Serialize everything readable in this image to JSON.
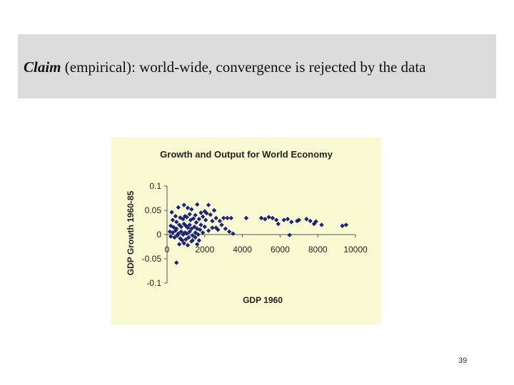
{
  "slide": {
    "claim_keyword": "Claim",
    "claim_rest": " (empirical): world-wide, convergence is rejected by the data",
    "page_number": "39"
  },
  "chart_data": {
    "type": "scatter",
    "title": "Growth and Output for World Economy",
    "xlabel": "GDP 1960",
    "ylabel": "GDP Growth 1960-85",
    "xlim": [
      0,
      10000
    ],
    "ylim": [
      -0.1,
      0.1
    ],
    "x_ticks": [
      "0",
      "2000",
      "4000",
      "6000",
      "8000",
      "10000"
    ],
    "y_ticks": [
      "0.1",
      "0.05",
      "0",
      "-0.05",
      "-0.1"
    ],
    "grid": false,
    "marker": "diamond",
    "point_color": "#1a237e",
    "points": [
      [
        250,
        0.046
      ],
      [
        450,
        0.038
      ],
      [
        600,
        0.056
      ],
      [
        900,
        0.061
      ],
      [
        1100,
        0.055
      ],
      [
        1300,
        0.052
      ],
      [
        1600,
        0.062
      ],
      [
        2200,
        0.061
      ],
      [
        1200,
        0.042
      ],
      [
        1500,
        0.04
      ],
      [
        1800,
        0.045
      ],
      [
        2000,
        0.048
      ],
      [
        2100,
        0.044
      ],
      [
        2300,
        0.041
      ],
      [
        2500,
        0.05
      ],
      [
        300,
        0.03
      ],
      [
        500,
        0.026
      ],
      [
        700,
        0.035
      ],
      [
        850,
        0.032
      ],
      [
        950,
        0.038
      ],
      [
        1050,
        0.036
      ],
      [
        1250,
        0.03
      ],
      [
        1400,
        0.033
      ],
      [
        1550,
        0.025
      ],
      [
        1700,
        0.032
      ],
      [
        1900,
        0.037
      ],
      [
        2050,
        0.03
      ],
      [
        2400,
        0.028
      ],
      [
        2600,
        0.034
      ],
      [
        2800,
        0.028
      ],
      [
        3000,
        0.034
      ],
      [
        3200,
        0.034
      ],
      [
        3400,
        0.034
      ],
      [
        2900,
        0.02
      ],
      [
        3100,
        0.012
      ],
      [
        3300,
        0.006
      ],
      [
        3500,
        0.002
      ],
      [
        200,
        0.018
      ],
      [
        350,
        0.015
      ],
      [
        500,
        0.012
      ],
      [
        650,
        0.02
      ],
      [
        750,
        0.016
      ],
      [
        900,
        0.022
      ],
      [
        1000,
        0.018
      ],
      [
        1100,
        0.014
      ],
      [
        1200,
        0.02
      ],
      [
        1300,
        0.012
      ],
      [
        1450,
        0.016
      ],
      [
        1600,
        0.012
      ],
      [
        1800,
        0.02
      ],
      [
        2000,
        0.016
      ],
      [
        2200,
        0.008
      ],
      [
        2400,
        0.014
      ],
      [
        1750,
        0.01
      ],
      [
        2600,
        0.014
      ],
      [
        2700,
        0.01
      ],
      [
        150,
        0.006
      ],
      [
        300,
        0.004
      ],
      [
        450,
        0.008
      ],
      [
        600,
        0.002
      ],
      [
        750,
        0.006
      ],
      [
        850,
        0.0
      ],
      [
        950,
        0.004
      ],
      [
        1050,
        0.002
      ],
      [
        1200,
        0.006
      ],
      [
        1350,
        -0.002
      ],
      [
        1500,
        0.004
      ],
      [
        1650,
        0.0
      ],
      [
        1900,
        0.004
      ],
      [
        200,
        -0.004
      ],
      [
        400,
        -0.006
      ],
      [
        550,
        -0.002
      ],
      [
        700,
        -0.008
      ],
      [
        800,
        -0.012
      ],
      [
        1000,
        -0.01
      ],
      [
        1150,
        -0.006
      ],
      [
        1300,
        -0.014
      ],
      [
        1500,
        -0.006
      ],
      [
        1700,
        -0.012
      ],
      [
        650,
        -0.02
      ],
      [
        900,
        -0.018
      ],
      [
        1100,
        -0.022
      ],
      [
        1350,
        -0.012
      ],
      [
        1600,
        -0.02
      ],
      [
        500,
        -0.058
      ],
      [
        4200,
        0.034
      ],
      [
        5000,
        0.034
      ],
      [
        5200,
        0.032
      ],
      [
        5400,
        0.036
      ],
      [
        5600,
        0.034
      ],
      [
        5800,
        0.03
      ],
      [
        5900,
        0.022
      ],
      [
        6200,
        0.03
      ],
      [
        6400,
        0.032
      ],
      [
        6600,
        0.026
      ],
      [
        6900,
        0.028
      ],
      [
        7000,
        0.03
      ],
      [
        7400,
        0.032
      ],
      [
        7600,
        0.028
      ],
      [
        7800,
        0.022
      ],
      [
        7900,
        0.027
      ],
      [
        8200,
        0.02
      ],
      [
        9300,
        0.018
      ],
      [
        9500,
        0.02
      ],
      [
        6500,
        -0.001
      ]
    ]
  }
}
